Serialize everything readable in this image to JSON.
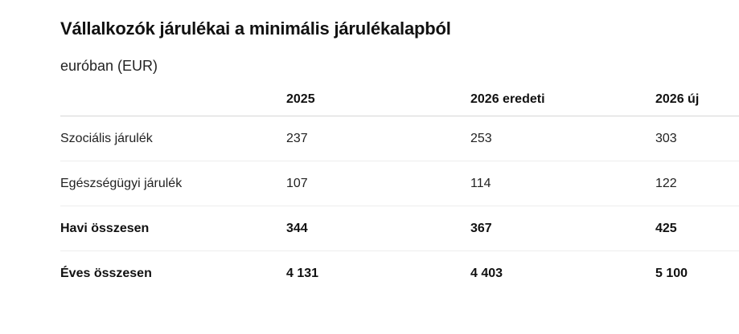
{
  "title": "Vállalkozók járulékai a minimális járulékalapból",
  "subtitle": "euróban (EUR)",
  "table": {
    "headers": [
      "",
      "2025",
      "2026 eredeti",
      "2026 új"
    ],
    "rows": [
      {
        "label": "Szociális járulék",
        "values": [
          "237",
          "253",
          "303"
        ],
        "bold": false
      },
      {
        "label": "Egészségügyi járulék",
        "values": [
          "107",
          "114",
          "122"
        ],
        "bold": false
      },
      {
        "label": "Havi összesen",
        "values": [
          "344",
          "367",
          "425"
        ],
        "bold": true
      },
      {
        "label": "Éves összesen",
        "values": [
          "4 131",
          "4 403",
          "5 100"
        ],
        "bold": true
      }
    ]
  }
}
